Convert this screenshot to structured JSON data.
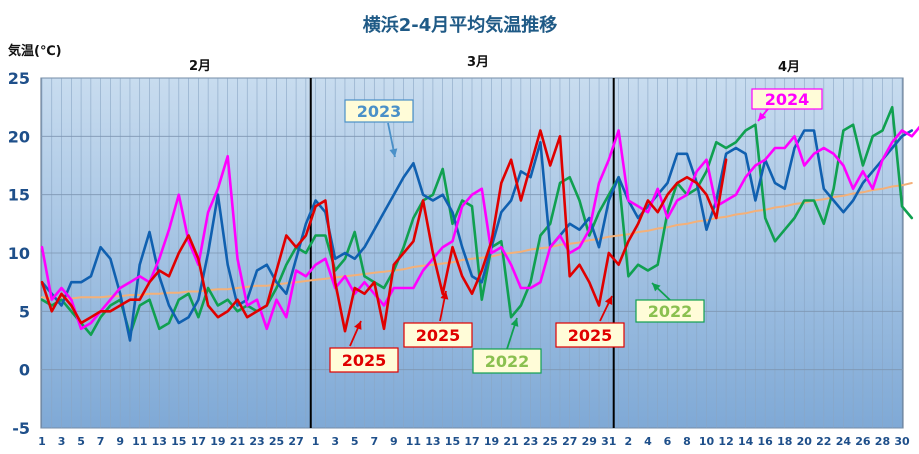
{
  "chart_data": {
    "type": "line",
    "title": "横浜2-4月平均気温推移",
    "ylabel": "気温(℃)",
    "ylim": [
      -5,
      25
    ],
    "yticks": [
      -5,
      0,
      5,
      10,
      15,
      20,
      25
    ],
    "months": [
      "2月",
      "3月",
      "4月"
    ],
    "month_days": [
      28,
      31,
      30
    ],
    "xticks": {
      "feb": [
        1,
        3,
        5,
        7,
        9,
        11,
        13,
        15,
        17,
        19,
        21,
        23,
        25,
        27
      ],
      "mar": [
        1,
        3,
        5,
        7,
        9,
        11,
        13,
        15,
        17,
        19,
        21,
        23,
        25,
        27,
        29,
        31
      ],
      "apr": [
        2,
        4,
        6,
        8,
        10,
        12,
        14,
        16,
        18,
        20,
        22,
        24,
        26,
        28,
        30
      ]
    },
    "grid": true,
    "colors": {
      "plot_top": "#c8dcef",
      "plot_bottom": "#7fa9d6",
      "2025": "#e00000",
      "2024": "#ff00ff",
      "2023": "#1060b0",
      "2022": "#10a050",
      "normal": "#f4b078"
    },
    "series": [
      {
        "name": "2025",
        "color": "#e00000",
        "values": [
          7.5,
          5.0,
          6.5,
          5.5,
          4.0,
          4.5,
          5.0,
          5.0,
          5.5,
          6.0,
          6.0,
          7.5,
          8.5,
          8.0,
          10.0,
          11.5,
          9.5,
          5.5,
          4.5,
          5.0,
          6.0,
          4.5,
          5.0,
          5.5,
          8.5,
          11.5,
          10.5,
          11.5,
          14.0,
          14.5,
          7.5,
          3.3,
          7.0,
          6.5,
          7.5,
          3.5,
          9.0,
          10.0,
          11.0,
          14.5,
          10.0,
          6.5,
          10.5,
          8.0,
          6.5,
          8.5,
          11.0,
          16.0,
          18.0,
          14.5,
          17.5,
          20.5,
          17.5,
          20.0,
          8.0,
          9.0,
          7.5,
          5.5,
          10.0,
          9.0,
          11.0,
          12.5,
          14.5,
          13.5,
          15.0,
          16.0,
          16.5,
          16.0,
          15.0,
          13.0,
          18.0
        ]
      },
      {
        "name": "2024",
        "color": "#ff00ff",
        "values": [
          10.5,
          6.0,
          7.0,
          6.0,
          3.5,
          4.0,
          5.0,
          6.0,
          7.0,
          7.5,
          8.0,
          7.5,
          9.5,
          12.0,
          15.0,
          11.0,
          9.0,
          13.5,
          15.5,
          18.3,
          9.5,
          5.5,
          6.0,
          3.5,
          6.0,
          4.5,
          8.5,
          8.0,
          9.0,
          9.5,
          7.0,
          8.0,
          6.5,
          7.5,
          6.5,
          5.5,
          7.0,
          7.0,
          7.0,
          8.5,
          9.5,
          10.5,
          11.0,
          14.0,
          15.0,
          15.5,
          10.0,
          10.5,
          9.0,
          7.0,
          7.0,
          7.5,
          10.5,
          11.5,
          10.0,
          10.5,
          12.0,
          16.0,
          18.0,
          20.5,
          14.5,
          14.0,
          13.5,
          15.5,
          13.0,
          14.5,
          15.0,
          17.0,
          18.0,
          14.0,
          14.5,
          15.0,
          16.5,
          17.5,
          18.0,
          19.0,
          19.0,
          20.0,
          17.5,
          18.5,
          19.0,
          18.5,
          17.5,
          15.5,
          17.0,
          15.5,
          18.0,
          19.5,
          20.5,
          20.0,
          21.0,
          21.0
        ]
      },
      {
        "name": "2023",
        "color": "#1060b0",
        "values": [
          7.5,
          6.5,
          5.5,
          7.5,
          7.5,
          8.0,
          10.5,
          9.5,
          6.5,
          2.5,
          9.0,
          11.8,
          8.0,
          5.5,
          4.0,
          4.5,
          6.0,
          10.0,
          15.0,
          9.0,
          5.5,
          6.0,
          8.5,
          9.0,
          7.5,
          6.5,
          9.5,
          12.5,
          14.5,
          13.5,
          9.5,
          10.0,
          9.5,
          10.5,
          12.0,
          13.5,
          15.0,
          16.5,
          17.7,
          15.0,
          14.5,
          15.0,
          13.5,
          10.5,
          8.0,
          7.5,
          10.5,
          13.5,
          14.5,
          17.0,
          16.5,
          19.5,
          10.5,
          11.5,
          12.5,
          12.0,
          13.0,
          10.5,
          14.5,
          16.5,
          14.5,
          13.0,
          14.0,
          15.0,
          16.0,
          18.5,
          18.5,
          16.0,
          12.0,
          14.5,
          18.5,
          19.0,
          18.5,
          14.5,
          18.0,
          16.0,
          15.5,
          19.0,
          20.5,
          20.5,
          15.5,
          14.5,
          13.5,
          14.5,
          16.0,
          17.0,
          18.0,
          19.0,
          20.0,
          20.5
        ]
      },
      {
        "name": "2022",
        "color": "#10a050",
        "values": [
          6.0,
          5.5,
          6.0,
          5.0,
          4.0,
          3.0,
          4.5,
          5.5,
          6.0,
          3.0,
          5.5,
          6.0,
          3.5,
          4.0,
          6.0,
          6.5,
          4.5,
          7.0,
          5.5,
          6.0,
          5.0,
          5.5,
          5.0,
          5.5,
          7.0,
          9.0,
          10.5,
          10.0,
          11.5,
          11.5,
          8.5,
          9.5,
          11.8,
          8.0,
          7.5,
          7.0,
          8.5,
          10.5,
          13.0,
          14.5,
          15.0,
          17.2,
          12.5,
          14.5,
          14.0,
          6.0,
          10.5,
          11.0,
          4.5,
          5.5,
          7.5,
          11.5,
          12.5,
          16.0,
          16.5,
          14.5,
          11.5,
          13.5,
          15.0,
          16.5,
          8.0,
          9.0,
          8.5,
          9.0,
          13.5,
          16.0,
          15.0,
          15.5,
          17.0,
          19.5,
          19.0,
          19.5,
          20.5,
          21.0,
          13.0,
          11.0,
          12.0,
          13.0,
          14.5,
          14.5,
          12.5,
          15.5,
          20.5,
          21.0,
          17.5,
          20.0,
          20.5,
          22.5,
          14.0,
          13.0
        ]
      },
      {
        "name": "normal",
        "color": "#f4b078",
        "values": [
          6.2,
          6.1,
          6.1,
          6.1,
          6.2,
          6.2,
          6.2,
          6.3,
          6.3,
          6.4,
          6.4,
          6.5,
          6.5,
          6.6,
          6.6,
          6.7,
          6.7,
          6.8,
          6.9,
          6.9,
          7.0,
          7.1,
          7.2,
          7.2,
          7.3,
          7.4,
          7.5,
          7.6,
          7.7,
          7.8,
          7.9,
          8.0,
          8.1,
          8.2,
          8.3,
          8.4,
          8.5,
          8.6,
          8.8,
          8.9,
          9.0,
          9.1,
          9.2,
          9.4,
          9.5,
          9.6,
          9.7,
          9.9,
          10.0,
          10.1,
          10.3,
          10.4,
          10.5,
          10.7,
          10.8,
          10.9,
          11.1,
          11.2,
          11.4,
          11.5,
          11.6,
          11.8,
          11.9,
          12.1,
          12.2,
          12.4,
          12.5,
          12.7,
          12.8,
          13.0,
          13.1,
          13.3,
          13.4,
          13.6,
          13.7,
          13.9,
          14.0,
          14.2,
          14.3,
          14.5,
          14.6,
          14.8,
          14.9,
          15.1,
          15.2,
          15.4,
          15.5,
          15.7,
          15.8,
          16.0
        ]
      }
    ],
    "annotations": [
      {
        "text": "2023",
        "color": "#4a90c8"
      },
      {
        "text": "2024",
        "color": "#ff00ff"
      },
      {
        "text": "2025",
        "color": "#e00000"
      },
      {
        "text": "2025",
        "color": "#e00000"
      },
      {
        "text": "2025",
        "color": "#e00000"
      },
      {
        "text": "2022",
        "color": "#8ac050"
      },
      {
        "text": "2022",
        "color": "#8ac050"
      }
    ]
  }
}
